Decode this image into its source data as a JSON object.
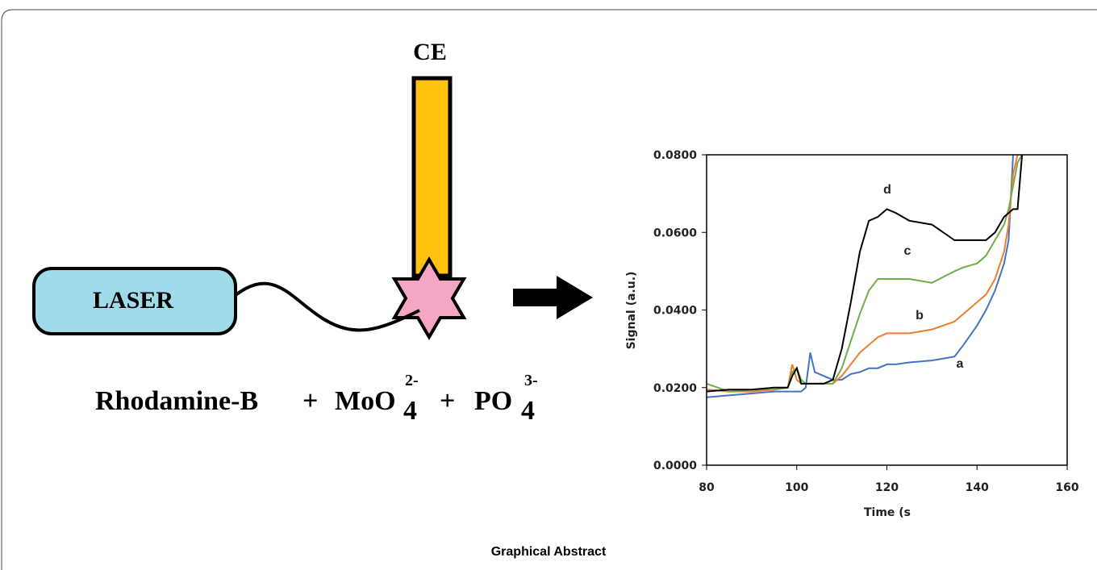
{
  "diagram": {
    "ce_label": "CE",
    "laser_label": "LASER",
    "reaction": [
      "Rhodamine-B",
      "+",
      "MoO",
      "4",
      "2-",
      "+",
      "PO",
      "4",
      "3-"
    ]
  },
  "caption": "Graphical Abstract",
  "chart_data": {
    "type": "line",
    "x_label": "Time (s",
    "y_label": "Signal (a.u.)",
    "x": [
      80,
      85,
      90,
      95,
      98,
      99,
      100,
      101,
      102,
      103,
      104,
      106,
      108,
      110,
      112,
      114,
      116,
      118,
      120,
      122,
      125,
      130,
      135,
      137,
      140,
      142,
      144,
      146,
      147,
      148,
      149,
      150
    ],
    "series": [
      {
        "name": "a",
        "color": "#4472c4",
        "values": [
          0.0175,
          0.018,
          0.0185,
          0.019,
          0.019,
          0.019,
          0.019,
          0.019,
          0.02,
          0.029,
          0.024,
          0.023,
          0.022,
          0.022,
          0.0235,
          0.024,
          0.025,
          0.025,
          0.026,
          0.026,
          0.0265,
          0.027,
          0.028,
          0.031,
          0.036,
          0.04,
          0.045,
          0.052,
          0.058,
          0.08,
          null,
          null
        ]
      },
      {
        "name": "b",
        "color": "#ed7d31",
        "values": [
          0.0195,
          0.019,
          0.019,
          0.0195,
          0.02,
          0.026,
          0.022,
          0.021,
          0.021,
          0.021,
          0.021,
          0.021,
          0.021,
          0.023,
          0.026,
          0.029,
          0.031,
          0.033,
          0.034,
          0.034,
          0.034,
          0.035,
          0.037,
          0.039,
          0.042,
          0.044,
          0.048,
          0.055,
          0.062,
          0.075,
          0.08,
          null
        ]
      },
      {
        "name": "c",
        "color": "#70ad47",
        "values": [
          0.021,
          0.019,
          0.0195,
          0.0195,
          0.02,
          0.024,
          0.025,
          0.022,
          0.021,
          0.021,
          0.021,
          0.021,
          0.021,
          0.025,
          0.032,
          0.039,
          0.045,
          0.048,
          0.048,
          0.048,
          0.048,
          0.047,
          0.05,
          0.051,
          0.052,
          0.054,
          0.058,
          0.062,
          0.066,
          0.072,
          0.078,
          0.08
        ]
      },
      {
        "name": "d",
        "color": "#000000",
        "values": [
          0.019,
          0.0195,
          0.0195,
          0.02,
          0.02,
          0.023,
          0.025,
          0.021,
          0.021,
          0.021,
          0.021,
          0.021,
          0.022,
          0.03,
          0.042,
          0.055,
          0.063,
          0.064,
          0.066,
          0.065,
          0.063,
          0.062,
          0.058,
          0.058,
          0.058,
          0.058,
          0.06,
          0.064,
          0.065,
          0.066,
          0.066,
          0.08
        ]
      }
    ],
    "xlim": [
      80,
      160
    ],
    "xticks": [
      80,
      100,
      120,
      140,
      160
    ],
    "ylim": [
      0,
      0.08
    ],
    "yticks": [
      {
        "value": 0,
        "label": "0.0000"
      },
      {
        "value": 0.02,
        "label": "0.0200"
      },
      {
        "value": 0.04,
        "label": "0.0400"
      },
      {
        "value": 0.06,
        "label": "0.0600"
      },
      {
        "value": 0.08,
        "label": "0.0800"
      }
    ],
    "grid": false
  }
}
